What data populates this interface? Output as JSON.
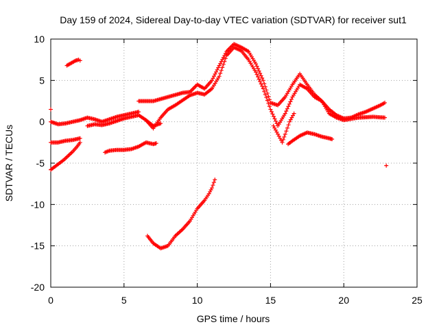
{
  "chart_data": {
    "type": "scatter",
    "title": "Day 159 of 2024, Sidereal Day-to-day VTEC variation (SDTVAR) for receiver sut1",
    "xlabel": "GPS time / hours",
    "ylabel": "SDTVAR / TECUs",
    "xlim": [
      0,
      25
    ],
    "ylim": [
      -20,
      10
    ],
    "x_ticks": [
      0,
      5,
      10,
      15,
      20,
      25
    ],
    "y_ticks": [
      10,
      5,
      0,
      -5,
      -10,
      -15,
      -20
    ],
    "grid": true,
    "marker": "+",
    "marker_color": "#ff0000",
    "series": [
      {
        "name": "main trace 1",
        "x": [
          0.0,
          0.5,
          1.0,
          1.5,
          2.0,
          2.5,
          3.0,
          3.5,
          4.0,
          4.5,
          5.0,
          5.5,
          6.0
        ],
        "y": [
          0.0,
          -0.3,
          -0.2,
          0.0,
          0.2,
          0.5,
          0.3,
          0.0,
          0.3,
          0.6,
          0.8,
          1.0,
          1.2
        ]
      },
      {
        "name": "main trace 2",
        "x": [
          2.5,
          3.0,
          3.5,
          4.0,
          4.5,
          5.0,
          5.5,
          6.0,
          6.5,
          7.0,
          7.5
        ],
        "y": [
          -0.5,
          -0.3,
          -0.4,
          -0.2,
          0.1,
          0.4,
          0.6,
          0.8,
          0.2,
          -0.5,
          -0.2
        ]
      },
      {
        "name": "main trace 3",
        "x": [
          6.0,
          7.0,
          8.0,
          9.0,
          9.5,
          10.0,
          10.5,
          11.0,
          11.5,
          12.0,
          12.5,
          13.0,
          13.5,
          14.0,
          14.5,
          15.0,
          15.5,
          16.0,
          16.5,
          17.0,
          17.5,
          18.0,
          18.5,
          19.0,
          19.5,
          20.0,
          20.5,
          21.0,
          21.5,
          22.0,
          22.5,
          22.8
        ],
        "y": [
          2.5,
          2.5,
          3.0,
          3.5,
          3.6,
          4.5,
          4.0,
          5.0,
          6.8,
          8.5,
          9.4,
          9.0,
          8.5,
          7.0,
          5.0,
          2.3,
          2.0,
          3.0,
          4.5,
          5.8,
          4.5,
          3.3,
          2.5,
          1.5,
          0.8,
          0.4,
          0.5,
          0.9,
          1.2,
          1.6,
          2.0,
          2.3
        ]
      },
      {
        "name": "main trace 4",
        "x": [
          6.5,
          7.0,
          7.5,
          8.0,
          8.5,
          9.0,
          9.5,
          10.0,
          10.5,
          11.0,
          11.5,
          12.0,
          12.5,
          13.0,
          13.5,
          14.0,
          14.5,
          15.0,
          15.5,
          16.0,
          16.5,
          17.0,
          17.5,
          18.0,
          18.5,
          19.0,
          19.5,
          20.0,
          21.0,
          22.0,
          22.8
        ],
        "y": [
          0.2,
          -0.8,
          0.5,
          1.5,
          2.0,
          2.6,
          3.2,
          3.5,
          3.3,
          4.0,
          5.5,
          8.0,
          9.0,
          8.6,
          7.5,
          6.0,
          4.0,
          1.5,
          -0.5,
          1.0,
          3.0,
          4.5,
          4.0,
          3.0,
          2.5,
          1.0,
          0.5,
          0.2,
          0.5,
          0.6,
          0.5
        ]
      },
      {
        "name": "arc 15-16.5",
        "x": [
          15.2,
          15.5,
          15.8,
          16.0,
          16.3,
          16.6
        ],
        "y": [
          -0.5,
          -1.5,
          -2.5,
          -1.5,
          0.0,
          1.0
        ]
      },
      {
        "name": "arc 16.2-19.2",
        "x": [
          16.2,
          16.5,
          17.0,
          17.5,
          18.0,
          18.5,
          19.0,
          19.2
        ],
        "y": [
          -2.7,
          -2.3,
          -1.7,
          -1.3,
          -1.5,
          -1.8,
          -2.0,
          -2.1
        ]
      },
      {
        "name": "arc 1.1-2.0",
        "x": [
          1.1,
          1.3,
          1.5,
          1.7,
          1.9,
          2.0
        ],
        "y": [
          6.8,
          7.0,
          7.2,
          7.4,
          7.5,
          7.4
        ]
      },
      {
        "name": "arc 0-2",
        "x": [
          0.0,
          0.5,
          1.0,
          1.5,
          2.0
        ],
        "y": [
          -2.5,
          -2.5,
          -2.3,
          -2.2,
          -2.0
        ]
      },
      {
        "name": "arc 0-2 lower",
        "x": [
          0.0,
          0.3,
          0.6,
          0.9,
          1.2,
          1.5,
          1.8,
          2.0
        ],
        "y": [
          -5.8,
          -5.4,
          -5.0,
          -4.6,
          -4.1,
          -3.6,
          -3.0,
          -2.5
        ]
      },
      {
        "name": "arc 3.7-7.2",
        "x": [
          3.7,
          4.0,
          4.5,
          5.0,
          5.5,
          6.0,
          6.5,
          7.0,
          7.2
        ],
        "y": [
          -3.7,
          -3.5,
          -3.4,
          -3.4,
          -3.3,
          -3.0,
          -2.5,
          -2.7,
          -2.6
        ]
      },
      {
        "name": "arc 6.6-11.2",
        "x": [
          6.6,
          7.0,
          7.5,
          8.0,
          8.5,
          9.0,
          9.5,
          10.0,
          10.5,
          10.8,
          11.0,
          11.2
        ],
        "y": [
          -13.8,
          -14.7,
          -15.3,
          -15.0,
          -13.8,
          -13.0,
          -12.0,
          -10.5,
          -9.5,
          -8.7,
          -8.0,
          -7.0
        ]
      },
      {
        "name": "outlier",
        "x": [
          22.9
        ],
        "y": [
          -5.3
        ]
      },
      {
        "name": "outlier start",
        "x": [
          0.0
        ],
        "y": [
          1.5
        ]
      }
    ]
  }
}
